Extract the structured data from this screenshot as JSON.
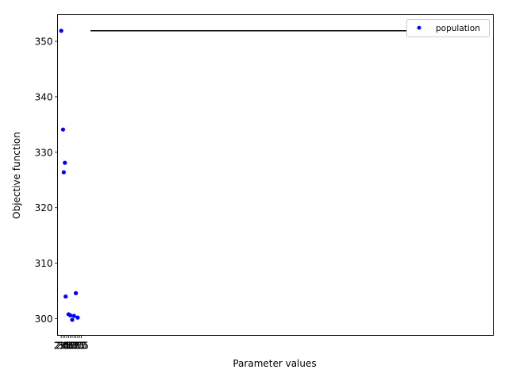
{
  "chart_data": {
    "type": "scatter",
    "xlabel": "Parameter values",
    "ylabel": "Objective function",
    "xticks": [
      "2.0",
      "2.5",
      "3.0",
      "3.5",
      "4.0",
      "4.5",
      "5.0",
      "5.5",
      "6.0",
      "6.5",
      "7.0",
      "7.5"
    ],
    "yticks": [
      300,
      310,
      320,
      330,
      340,
      350
    ],
    "ylim": [
      297,
      354.8
    ],
    "xlim": [
      1.0,
      120.0
    ],
    "grid": false,
    "legend_position": "top-right",
    "series": [
      {
        "name": "population",
        "color": "#0000ff",
        "marker": "dot",
        "points": [
          {
            "x": 2.0,
            "y": 351.9
          },
          {
            "x": 2.5,
            "y": 334.1
          },
          {
            "x": 2.7,
            "y": 326.4
          },
          {
            "x": 3.0,
            "y": 328.1
          },
          {
            "x": 3.2,
            "y": 304.0
          },
          {
            "x": 4.0,
            "y": 300.8
          },
          {
            "x": 4.5,
            "y": 300.6
          },
          {
            "x": 5.0,
            "y": 299.8
          },
          {
            "x": 5.5,
            "y": 300.5
          },
          {
            "x": 6.0,
            "y": 304.6
          },
          {
            "x": 6.5,
            "y": 300.2
          }
        ]
      }
    ],
    "reference_line": {
      "color": "#000000",
      "y": 351.9,
      "x_from": 10.0,
      "x_to": 101.0
    }
  }
}
